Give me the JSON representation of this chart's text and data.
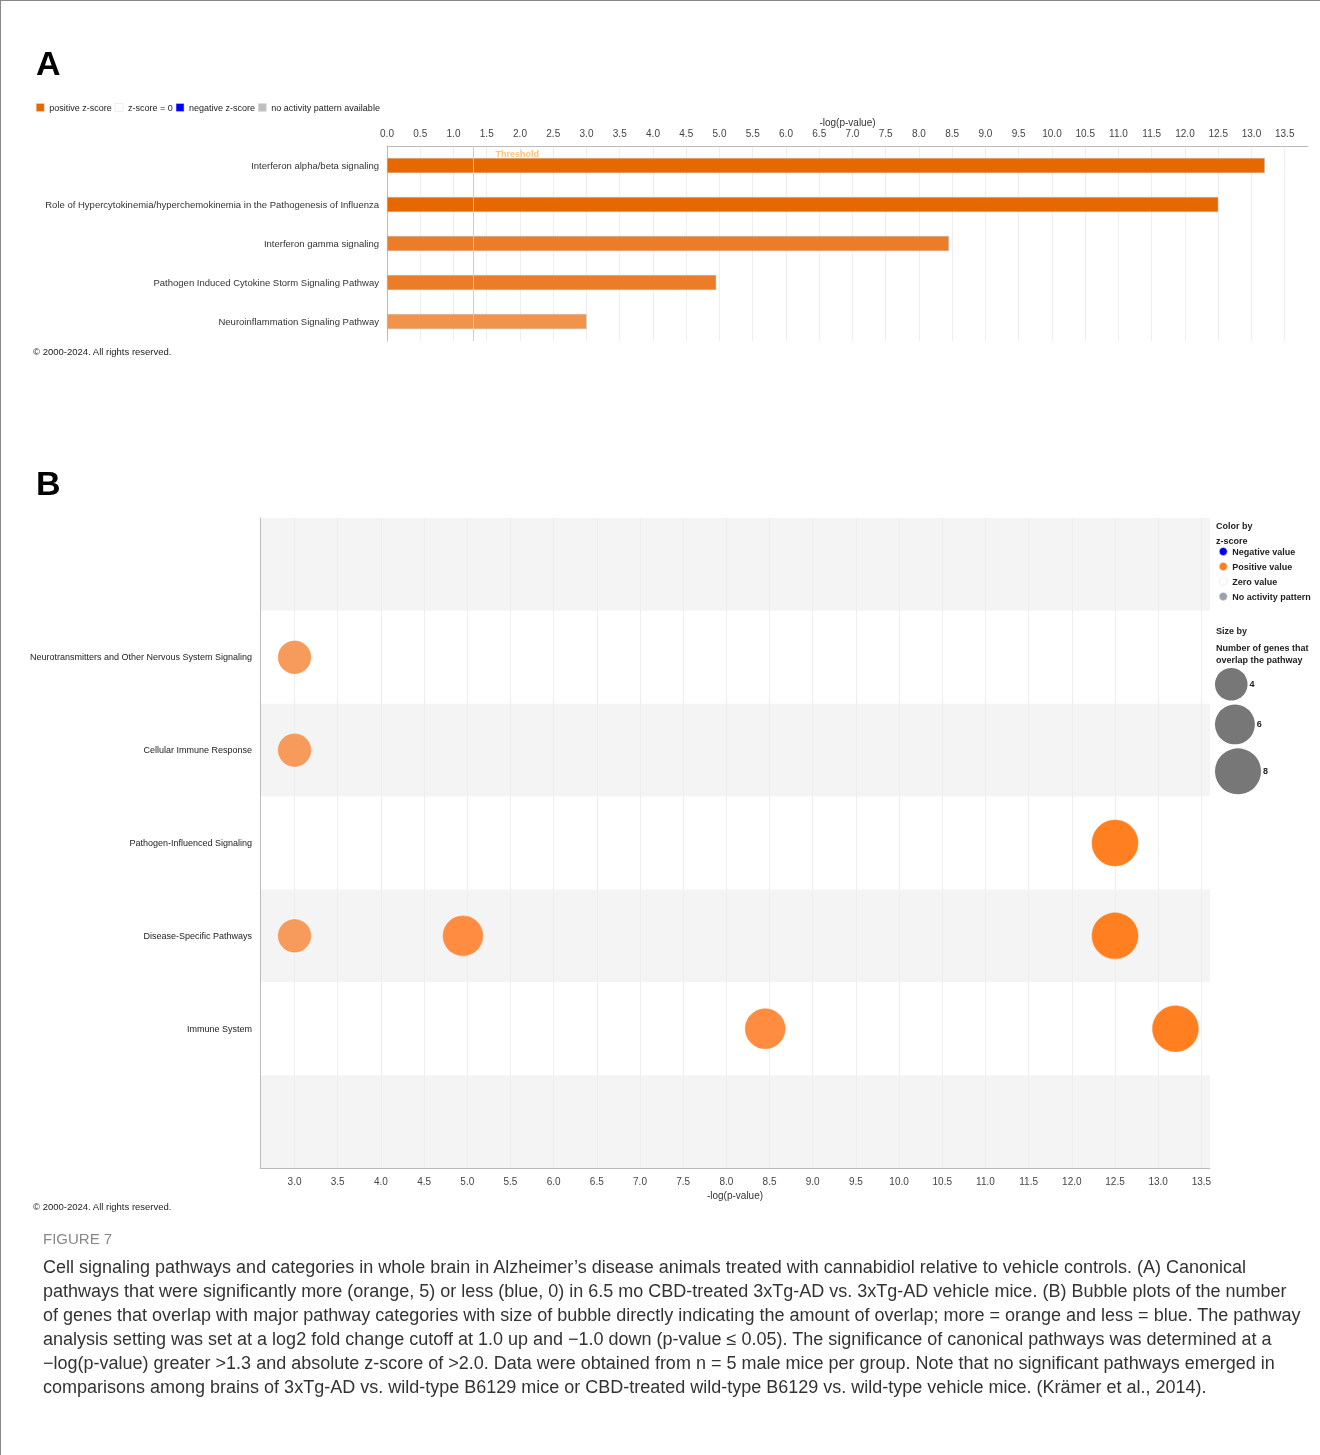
{
  "chart_data": [
    {
      "type": "bar",
      "title": "A",
      "orientation": "horizontal",
      "xlabel": "-log(p-value)",
      "categories": [
        "Interferon alpha/beta signaling",
        "Role of Hypercytokinemia/hyperchemokinemia in the Pathogenesis of Influenza",
        "Interferon gamma signaling",
        "Pathogen Induced Cytokine Storm Signaling Pathway",
        "Neuroinflammation Signaling Pathway"
      ],
      "series": [
        {
          "name": "positive z-score",
          "color": "#e86800",
          "colors": [
            "#e86800",
            "#e86800",
            "#ec7d28",
            "#ec7d28",
            "#f0944c"
          ],
          "values": [
            13.2,
            12.5,
            8.45,
            4.95,
            3.0
          ]
        },
        {
          "name": "z-score = 0",
          "color": "#ffffff",
          "values": [
            null,
            null,
            null,
            null,
            null
          ]
        },
        {
          "name": "negative z-score",
          "color": "#0000ff",
          "values": [
            null,
            null,
            null,
            null,
            null
          ]
        },
        {
          "name": "no activity pattern available",
          "color": "#bfbfbf",
          "values": [
            null,
            null,
            null,
            null,
            null
          ]
        }
      ],
      "xlim": [
        0,
        13.85
      ],
      "xticks": [
        {
          "value": 0,
          "label": "0.0"
        },
        0.5,
        {
          "value": 1,
          "label": "1.0"
        },
        1.5,
        {
          "value": 2,
          "label": "2.0"
        },
        2.5,
        {
          "value": 3,
          "label": "3.0"
        },
        3.5,
        {
          "value": 4,
          "label": "4.0"
        },
        4.5,
        {
          "value": 5,
          "label": "5.0"
        },
        5.5,
        {
          "value": 6,
          "label": "6.0"
        },
        6.5,
        {
          "value": 7,
          "label": "7.0"
        },
        7.5,
        {
          "value": 8,
          "label": "8.0"
        },
        8.5,
        {
          "value": 9,
          "label": "9.0"
        },
        9.5,
        {
          "value": 10,
          "label": "10.0"
        },
        10.5,
        {
          "value": 11,
          "label": "11.0"
        },
        11.5,
        {
          "value": 12,
          "label": "12.0"
        },
        12.5,
        {
          "value": 13,
          "label": "13.0"
        },
        13.5
      ],
      "ref_lines": [
        {
          "axis": "x",
          "value": 1.3,
          "label": "Threshold",
          "color": "#ffc27a"
        }
      ],
      "grid": "x",
      "legend": "top left",
      "annotations": [
        "© 2000-2024. All rights reserved."
      ]
    },
    {
      "type": "bubble",
      "title": "B",
      "orientation": "horizontal",
      "xlabel": "-log(p-value)",
      "legend_title": "Color by z-score",
      "categories": [
        null,
        "Neurotransmitters and Other Nervous System Signaling",
        "Cellular Immune Response",
        "Pathogen-Influenced Signaling",
        "Disease-Specific Pathways",
        "Immune System",
        null
      ],
      "series": [
        {
          "name": "Negative value",
          "color": "#0000ff",
          "values": [
            null,
            null,
            null,
            null,
            null,
            null,
            null
          ]
        },
        {
          "name": "Positive value",
          "color": "#ff7f21",
          "colors": [
            null,
            "#f79b5c",
            "#f79b5c",
            "#ff7f21",
            "#f79b5c",
            "#ff8c40",
            null
          ],
          "values": [
            null,
            3.0,
            3.0,
            12.5,
            3.0,
            8.45,
            null
          ],
          "sizes": [
            null,
            4,
            4,
            8,
            4,
            6,
            null
          ]
        },
        {
          "name": "Zero value",
          "color": "#ffffff",
          "values": [
            null,
            null,
            null,
            null,
            null,
            null,
            null
          ]
        },
        {
          "name": "No activity pattern",
          "color": "#9aa0ad",
          "values": [
            null,
            null,
            null,
            null,
            null,
            null,
            null
          ]
        },
        {
          "color": "#ff8c40",
          "colors": [
            null,
            null,
            null,
            null,
            "#ff8c40",
            "#ff7f21",
            null
          ],
          "values": [
            null,
            null,
            null,
            null,
            4.95,
            13.2,
            null
          ],
          "sizes": [
            null,
            null,
            null,
            null,
            6,
            8,
            null
          ]
        },
        {
          "color": "#ff7f21",
          "values": [
            null,
            null,
            null,
            null,
            12.5,
            null,
            null
          ],
          "sizes": [
            null,
            null,
            null,
            null,
            8,
            null,
            null
          ]
        }
      ],
      "size_legend": [
        4,
        6,
        8
      ],
      "xlim": [
        2.6,
        13.6
      ],
      "xticks": [
        {
          "value": 3,
          "label": "3.0"
        },
        3.5,
        {
          "value": 4,
          "label": "4.0"
        },
        4.5,
        {
          "value": 5,
          "label": "5.0"
        },
        5.5,
        {
          "value": 6,
          "label": "6.0"
        },
        6.5,
        {
          "value": 7,
          "label": "7.0"
        },
        7.5,
        {
          "value": 8,
          "label": "8.0"
        },
        8.5,
        {
          "value": 9,
          "label": "9.0"
        },
        9.5,
        {
          "value": 10,
          "label": "10.0"
        },
        10.5,
        {
          "value": 11,
          "label": "11.0"
        },
        11.5,
        {
          "value": 12,
          "label": "12.0"
        },
        12.5,
        {
          "value": 13,
          "label": "13.0"
        },
        13.5
      ],
      "grid": "x",
      "legend": "right",
      "annotations": [
        "Size by",
        "Number of genes that overlap the pathway",
        "© 2000-2024. All rights reserved.",
        "FIGURE 7",
        "Cell signaling pathways and categories in whole brain in Alzheimer’s disease animals treated with cannabidiol relative to vehicle controls. (A) Canonical pathways that were significantly more (orange, 5) or less (blue, 0) in 6.5 mo CBD-treated 3xTg-AD vs. 3xTg-AD vehicle mice. (B) Bubble plots of the number of genes that overlap with major pathway categories with size of bubble directly indicating the amount of overlap; more = orange and less = blue. The pathway analysis setting was set at a log2 fold change cutoff at 1.0 up and −1.0 down (p-value ≤ 0.05). The significance of canonical pathways was determined at a −log(p-value) greater >1.3 and absolute z-score of >2.0. Data were obtained from n = 5 male mice per group. Note that no significant pathways emerged in comparisons among brains of 3xTg-AD vs. wild-type B6129 mice or CBD-treated wild-type B6129 vs. wild-type vehicle mice. (Krämer et al., 2014)."
      ]
    }
  ]
}
